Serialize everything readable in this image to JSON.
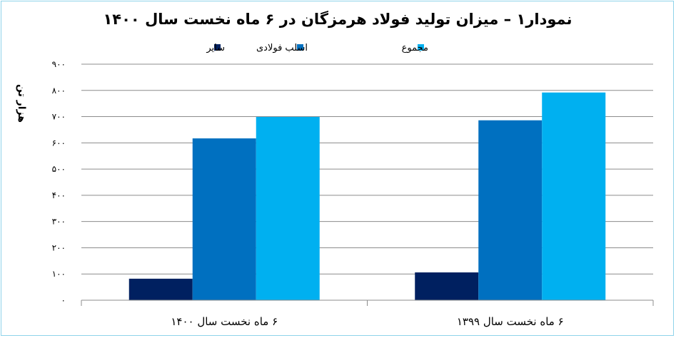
{
  "chart_data": {
    "type": "bar",
    "title": "نمودار۱ – میزان تولید فولاد هرمزگان در ۶ ماه نخست سال ۱۴۰۰",
    "ylabel": "هزار تن",
    "xlabel": "",
    "ylim": [
      0,
      900
    ],
    "yticks": [
      0,
      100,
      200,
      300,
      400,
      500,
      600,
      700,
      800,
      900
    ],
    "ytick_labels": [
      "۰",
      "۱۰۰",
      "۲۰۰",
      "۳۰۰",
      "۴۰۰",
      "۵۰۰",
      "۶۰۰",
      "۷۰۰",
      "۸۰۰",
      "۹۰۰"
    ],
    "categories": [
      "۶ ماه نخست سال ۱۴۰۰",
      "۶ ماه نخست سال ۱۳۹۹"
    ],
    "series": [
      {
        "name": "سایر",
        "values": [
          82,
          106
        ],
        "color": "#002060"
      },
      {
        "name": "اسلب فولادی",
        "values": [
          617,
          686
        ],
        "color": "#0070c0"
      },
      {
        "name": "مجموع",
        "values": [
          699,
          792
        ],
        "color": "#00b0f0"
      }
    ],
    "legend_position": "top",
    "grid": true
  }
}
